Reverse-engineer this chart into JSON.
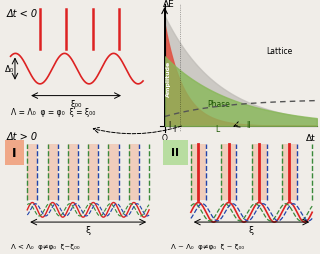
{
  "bg_color": "#f0ede8",
  "top_left_label": "Δt < 0",
  "bot_left_label": "Δt > 0",
  "graph_xlabel": "Δt",
  "graph_ylabel": "ΔE",
  "lattice_label": "Lattice",
  "amplitude_label": "Amplitude",
  "phase_label": "Phase",
  "top_formula": "Λ = Λ₀  φ = φ₀  ξ = ξ₀₀",
  "bot_left_formula": "Λ < Λ₀  φ≠φ₀  ξ~ξ₀₀",
  "bot_right_formula": "Λ ~ Λ₀  φ≠φ₀  ξ ~ ξ₀₀",
  "delta0_label": "Δ₀",
  "xi00_label": "ξ₀₀",
  "xi_label": "ξ",
  "red_color": "#dd2222",
  "green_color": "#3a8a3a",
  "blue_color": "#2244aa",
  "salmon_color": "#f0a888",
  "green_box_color": "#b8dda0",
  "gray_fill": "#c0bdb8",
  "red_fill": "#e05545",
  "green_fill": "#88b858",
  "lattice_dashed": "#555555"
}
